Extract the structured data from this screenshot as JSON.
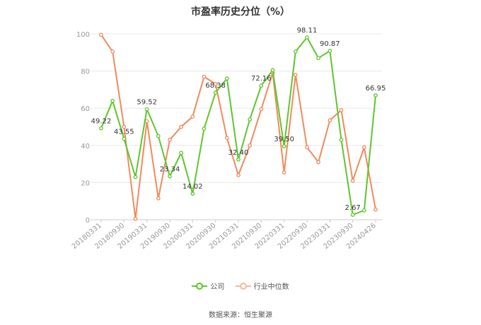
{
  "chart_data": {
    "type": "line",
    "title": "市盈率历史分位（%）",
    "ylim": [
      0,
      100
    ],
    "yticks": [
      0,
      20,
      40,
      60,
      80,
      100
    ],
    "grid": true,
    "legend_position": "bottom",
    "x": [
      "20180331",
      "20180630",
      "20180930",
      "20181231",
      "20190331",
      "20190630",
      "20190930",
      "20191231",
      "20200331",
      "20200630",
      "20200930",
      "20201231",
      "20210331",
      "20210630",
      "20210930",
      "20211231",
      "20220331",
      "20220630",
      "20220930",
      "20221231",
      "20230331",
      "20230630",
      "20230930",
      "20231231",
      "20240426"
    ],
    "x_tick_labels": [
      "20180331",
      "20180930",
      "20190331",
      "20190930",
      "20200331",
      "20200930",
      "20210331",
      "20210930",
      "20220331",
      "20220930",
      "20230331",
      "20230930",
      "20240426"
    ],
    "series": [
      {
        "name": "公司",
        "color": "#5cc72d",
        "values": [
          49.22,
          64.0,
          43.55,
          23.0,
          59.52,
          45.0,
          23.34,
          36.0,
          14.02,
          49.0,
          68.38,
          76.0,
          32.4,
          54.0,
          72.16,
          80.5,
          39.5,
          90.5,
          98.11,
          87.0,
          90.87,
          43.0,
          2.67,
          5.0,
          66.95
        ],
        "labels": {
          "0": "49.22",
          "2": "43.55",
          "4": "59.52",
          "6": "23.34",
          "8": "14.02",
          "10": "68.38",
          "12": "32.40",
          "14": "72.16",
          "16": "39.50",
          "18": "98.11",
          "20": "90.87",
          "22": "2.67",
          "24": "66.95"
        }
      },
      {
        "name": "行业中位数",
        "color": "#f28a5b",
        "values": [
          99.5,
          90.5,
          50.0,
          0.5,
          53.0,
          11.5,
          43.0,
          50.0,
          55.5,
          77.0,
          73.0,
          44.0,
          24.0,
          40.0,
          59.5,
          79.0,
          25.5,
          78.0,
          39.0,
          31.0,
          53.5,
          59.0,
          21.0,
          39.0,
          5.5
        ]
      }
    ]
  },
  "legend": {
    "items": [
      "公司",
      "行业中位数"
    ]
  },
  "source": "数据来源：恒生聚源"
}
